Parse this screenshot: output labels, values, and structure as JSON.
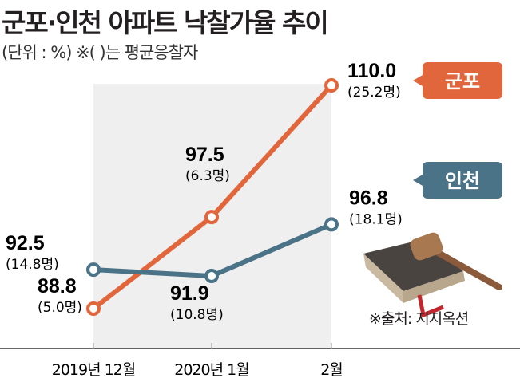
{
  "chart_data": {
    "type": "line",
    "title": "군포·인천 아파트 낙찰가율 추이",
    "subtitle": "(단위 : %)  ※(  )는 평균응찰자",
    "categories": [
      "2019년 12월",
      "2020년 1월",
      "2월"
    ],
    "series": [
      {
        "name": "군포",
        "color": "#e2663b",
        "values": [
          88.8,
          97.5,
          110.0
        ],
        "bidders": [
          "(5.0명)",
          "(6.3명)",
          "(25.2명)"
        ],
        "labels": [
          "88.8",
          "97.5",
          "110.0"
        ]
      },
      {
        "name": "인천",
        "color": "#4a7387",
        "values": [
          92.5,
          91.9,
          96.8
        ],
        "bidders": [
          "(14.8명)",
          "(10.8명)",
          "(18.1명)"
        ],
        "labels": [
          "92.5",
          "91.9",
          "96.8"
        ]
      }
    ],
    "ylim": [
      85,
      112
    ],
    "source": "※출처: 지지옥션"
  }
}
